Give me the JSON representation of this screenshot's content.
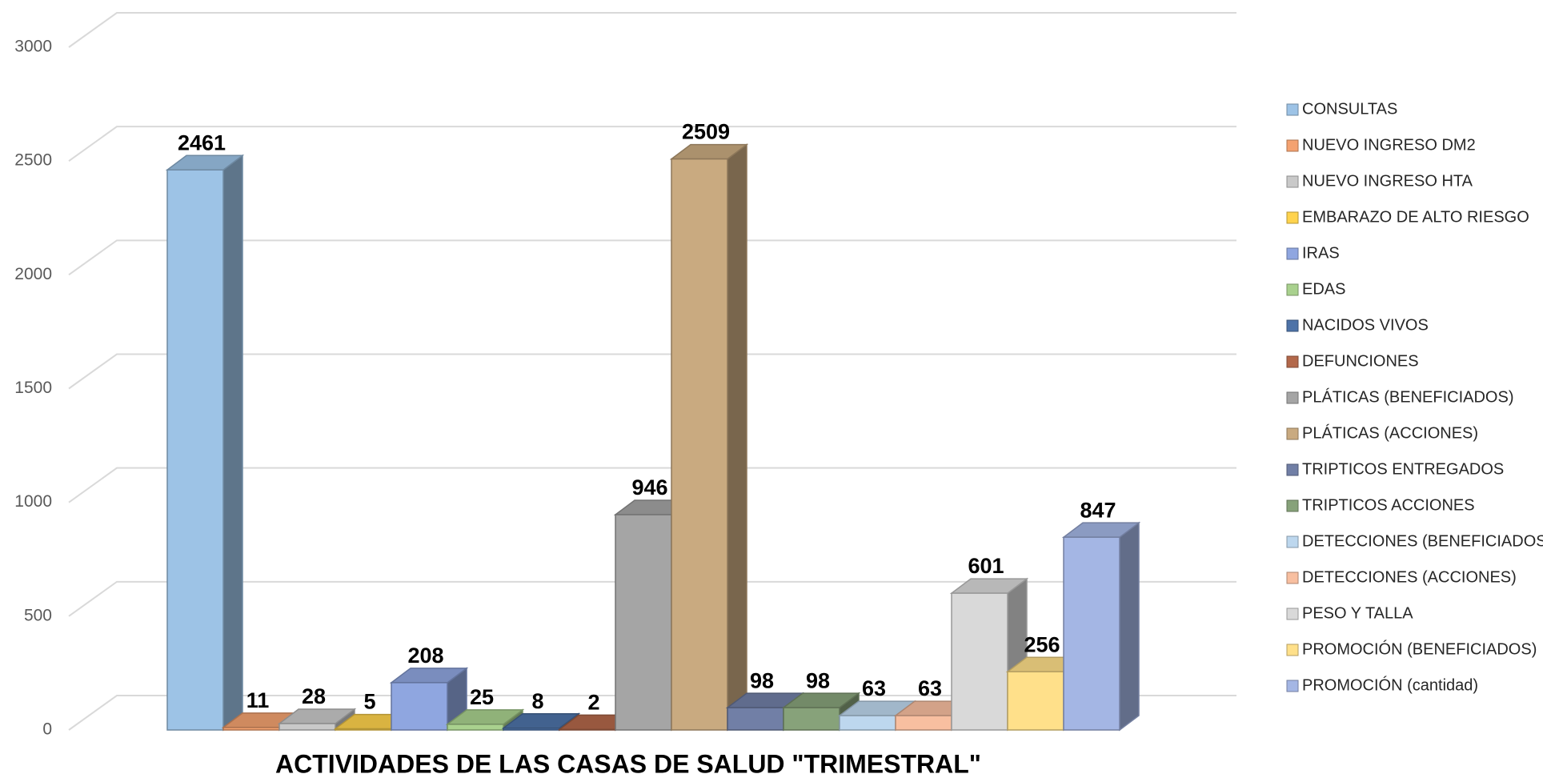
{
  "chart_data": {
    "type": "bar3d",
    "categories": [
      "ACTIVIDADES DE LAS CASAS DE SALUD \"TRIMESTRAL\""
    ],
    "ylim": [
      0,
      3000
    ],
    "yticks": [
      0,
      500,
      1000,
      1500,
      2000,
      2500,
      3000
    ],
    "grid": true,
    "legend": "right",
    "series": [
      {
        "name": "CONSULTAS",
        "color": "#9dc3e6",
        "values": [
          2461
        ]
      },
      {
        "name": "NUEVO INGRESO DM2",
        "color": "#f4a270",
        "values": [
          11
        ]
      },
      {
        "name": "NUEVO INGRESO HTA",
        "color": "#c9c9c9",
        "values": [
          28
        ]
      },
      {
        "name": "EMBARAZO DE ALTO RIESGO",
        "color": "#ffd34d",
        "values": [
          5
        ]
      },
      {
        "name": "IRAS",
        "color": "#8fa6e0",
        "values": [
          208
        ]
      },
      {
        "name": "EDAS",
        "color": "#a9d18e",
        "values": [
          25
        ]
      },
      {
        "name": "NACIDOS VIVOS",
        "color": "#4e73a8",
        "values": [
          8
        ]
      },
      {
        "name": "DEFUNCIONES",
        "color": "#b3684a",
        "values": [
          2
        ]
      },
      {
        "name": "PLÁTICAS (BENEFICIADOS)",
        "color": "#a5a5a5",
        "values": [
          946
        ]
      },
      {
        "name": "PLÁTICAS (ACCIONES)",
        "color": "#c9aa80",
        "values": [
          2509
        ]
      },
      {
        "name": "TRIPTICOS ENTREGADOS",
        "color": "#717fa6",
        "values": [
          98
        ]
      },
      {
        "name": "TRIPTICOS ACCIONES",
        "color": "#87a27a",
        "values": [
          98
        ]
      },
      {
        "name": "DETECCIONES (BENEFICIADOS)",
        "color": "#bdd7ee",
        "values": [
          63
        ]
      },
      {
        "name": "DETECCIONES (ACCIONES)",
        "color": "#f8bfa0",
        "values": [
          63
        ]
      },
      {
        "name": "PESO Y TALLA",
        "color": "#d9d9d9",
        "values": [
          601
        ]
      },
      {
        "name": "PROMOCIÓN (BENEFICIADOS)",
        "color": "#ffe08a",
        "values": [
          256
        ]
      },
      {
        "name": "PROMOCIÓN (cantidad)",
        "color": "#a4b6e4",
        "values": [
          847
        ]
      }
    ]
  }
}
